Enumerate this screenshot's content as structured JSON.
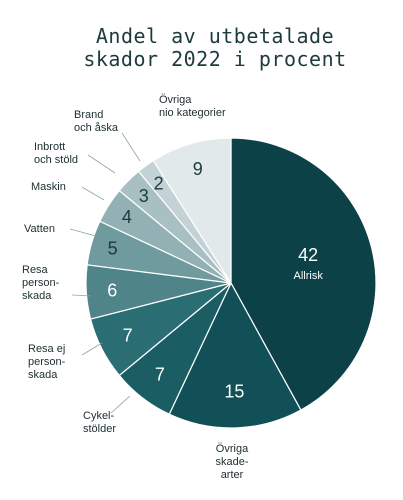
{
  "chart_data": {
    "type": "pie",
    "title_lines": [
      "Andel av utbetalade",
      "skador 2022 i procent"
    ],
    "slices": [
      {
        "value": 42,
        "label_lines": [
          "Allrisk"
        ],
        "color": "#0c4148",
        "text_color": "#ffffff",
        "label_inside": true
      },
      {
        "value": 15,
        "label_lines": [
          "Övriga",
          "skade-",
          "arter"
        ],
        "color": "#125057",
        "text_color": "#ffffff",
        "label_inside": false
      },
      {
        "value": 7,
        "label_lines": [
          "Cykel-",
          "stölder"
        ],
        "color": "#1a5d63",
        "text_color": "#ffffff",
        "label_inside": false
      },
      {
        "value": 7,
        "label_lines": [
          "Resa ej",
          "person-",
          "skada"
        ],
        "color": "#2a6e74",
        "text_color": "#ffffff",
        "label_inside": false
      },
      {
        "value": 6,
        "label_lines": [
          "Resa",
          "person-",
          "skada"
        ],
        "color": "#4f8489",
        "text_color": "#ffffff",
        "label_inside": false
      },
      {
        "value": 5,
        "label_lines": [
          "Vatten"
        ],
        "color": "#6f9a9e",
        "text_color": "#1d3a3d",
        "label_inside": false
      },
      {
        "value": 4,
        "label_lines": [
          "Maskin"
        ],
        "color": "#93b1b4",
        "text_color": "#1d3a3d",
        "label_inside": false
      },
      {
        "value": 3,
        "label_lines": [
          "Inbrott",
          "och stöld"
        ],
        "color": "#a9c0c3",
        "text_color": "#1d3a3d",
        "label_inside": false
      },
      {
        "value": 2,
        "label_lines": [
          "Brand",
          "och åska"
        ],
        "color": "#c3d3d5",
        "text_color": "#1d3a3d",
        "label_inside": false
      },
      {
        "value": 9,
        "label_lines": [
          "Övriga",
          "nio kategorier"
        ],
        "color": "#e1e9eb",
        "text_color": "#1d3a3d",
        "label_inside": false
      }
    ]
  }
}
